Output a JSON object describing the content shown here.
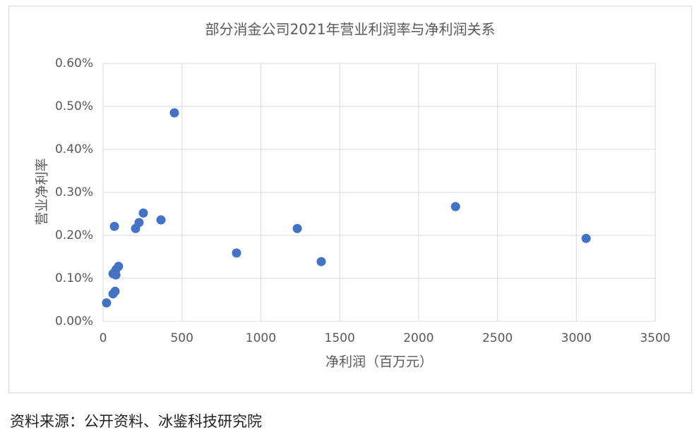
{
  "chart_data": {
    "type": "scatter",
    "title": "部分消金公司2021年营业利润率与净利润关系",
    "x_label": "净利润（百万元）",
    "y_label": "营业净利率",
    "x": [
      452,
      22,
      72,
      98,
      81,
      63,
      81,
      63,
      76,
      206,
      228,
      255,
      367,
      846,
      1231,
      1383,
      2234,
      3062
    ],
    "values": [
      0.485,
      0.043,
      0.221,
      0.128,
      0.12,
      0.111,
      0.108,
      0.064,
      0.07,
      0.216,
      0.23,
      0.252,
      0.236,
      0.159,
      0.216,
      0.139,
      0.267,
      0.193
    ],
    "color": "#4472c4",
    "xlim": [
      0,
      3500
    ],
    "xticks": [
      0,
      500,
      1000,
      1500,
      2000,
      2500,
      3000,
      3500
    ],
    "ylim": [
      0,
      0.6
    ],
    "yticks": [
      {
        "value": 0,
        "label": "0.00%"
      },
      {
        "value": 0.1,
        "label": "0.10%"
      },
      {
        "value": 0.2,
        "label": "0.20%"
      },
      {
        "value": 0.3,
        "label": "0.30%"
      },
      {
        "value": 0.4,
        "label": "0.40%"
      },
      {
        "value": 0.5,
        "label": "0.50%"
      },
      {
        "value": 0.6,
        "label": "0.60%"
      }
    ],
    "grid": true
  },
  "source": "资料来源：公开资料、冰鉴科技研究院"
}
